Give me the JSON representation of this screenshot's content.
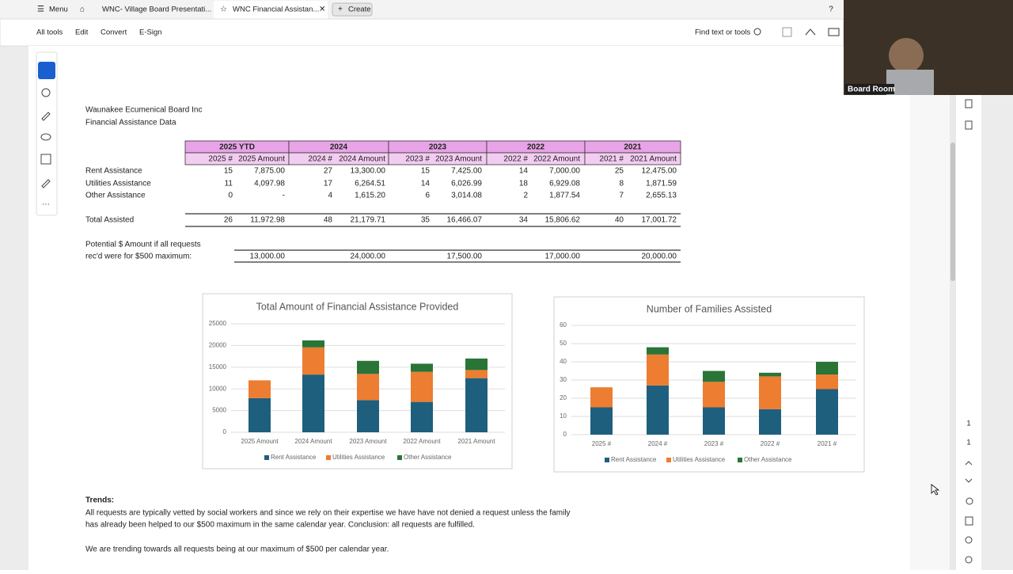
{
  "tabs": {
    "menu": "Menu",
    "items": [
      "WNC- Village Board Presentati...",
      "WNC Financial Assistan..."
    ],
    "create": "Create"
  },
  "toolbar": {
    "items": [
      "All tools",
      "Edit",
      "Convert",
      "E-Sign"
    ],
    "search": "Find text or tools"
  },
  "video": {
    "label": "Board Room"
  },
  "page_numbers": [
    "1",
    "1"
  ],
  "document": {
    "org": "Waunakee Ecumenical Board Inc",
    "subtitle": "Financial Assistance Data",
    "table": {
      "groups": [
        "2025 YTD",
        "2024",
        "2023",
        "2022",
        "2021"
      ],
      "columns": [
        "2025 #",
        "2025 Amount",
        "2024 #",
        "2024 Amount",
        "2023 #",
        "2023 Amount",
        "2022 #",
        "2022 Amount",
        "2021 #",
        "2021 Amount"
      ],
      "rows": [
        [
          "Rent Assistance",
          "15",
          "7,875.00",
          "27",
          "13,300.00",
          "15",
          "7,425.00",
          "14",
          "7,000.00",
          "25",
          "12,475.00"
        ],
        [
          "Utilities Assistance",
          "11",
          "4,097.98",
          "17",
          "6,264.51",
          "14",
          "6,026.99",
          "18",
          "6,929.08",
          "8",
          "1,871.59"
        ],
        [
          "Other Assistance",
          "0",
          "-",
          "4",
          "1,615.20",
          "6",
          "3,014.08",
          "2",
          "1,877.54",
          "7",
          "2,655.13"
        ]
      ],
      "total": [
        "Total Assisted",
        "26",
        "11,972.98",
        "48",
        "21,179.71",
        "35",
        "16,466.07",
        "34",
        "15,806.62",
        "40",
        "17,001.72"
      ],
      "potential": {
        "label_lines": [
          "Potential $ Amount if all requests",
          "rec'd were for $500 maximum:"
        ],
        "values": [
          "13,000.00",
          "24,000.00",
          "17,500.00",
          "17,000.00",
          "20,000.00"
        ]
      }
    },
    "charts": [
      {
        "type": "stacked-bar",
        "title": "Total Amount of Financial Assistance Provided",
        "categories": [
          "2025 Amount",
          "2024 Amount",
          "2023 Amount",
          "2022 Amount",
          "2021 Amount"
        ],
        "series": [
          {
            "name": "Rent Assistance",
            "color": "#1f5f7e",
            "values": [
              7875,
              13300,
              7425,
              7000,
              12475
            ]
          },
          {
            "name": "Utilities Assistance",
            "color": "#ed7d31",
            "values": [
              4097.98,
              6264.51,
              6026.99,
              6929.08,
              1871.59
            ]
          },
          {
            "name": "Other Assistance",
            "color": "#2a7437",
            "values": [
              0,
              1615.2,
              3014.08,
              1877.54,
              2655.13
            ]
          }
        ],
        "ylim": [
          0,
          25000
        ],
        "yticks": [
          0,
          5000,
          10000,
          15000,
          20000,
          25000
        ],
        "grid": true
      },
      {
        "type": "stacked-bar",
        "title": "Number of Families Assisted",
        "categories": [
          "2025 #",
          "2024 #",
          "2023 #",
          "2022 #",
          "2021 #"
        ],
        "series": [
          {
            "name": "Rent Assistance",
            "color": "#1f5f7e",
            "values": [
              15,
              27,
              15,
              14,
              25
            ]
          },
          {
            "name": "Utilities Assistance",
            "color": "#ed7d31",
            "values": [
              11,
              17,
              14,
              18,
              8
            ]
          },
          {
            "name": "Other Assistance",
            "color": "#2a7437",
            "values": [
              0,
              4,
              6,
              2,
              7
            ]
          }
        ],
        "ylim": [
          0,
          60
        ],
        "yticks": [
          0,
          10,
          20,
          30,
          40,
          50,
          60
        ],
        "grid": true
      }
    ],
    "trends": {
      "heading": "Trends:",
      "lines": [
        "All requests are typically vetted by social workers and since we rely on their expertise we have have not denied a request unless the family",
        "has already been helped to our $500 maximum in the same calendar year. Conclusion: all requests are fulfilled.",
        "We are trending towards all requests being at our maximum of $500 per calendar year."
      ]
    }
  }
}
